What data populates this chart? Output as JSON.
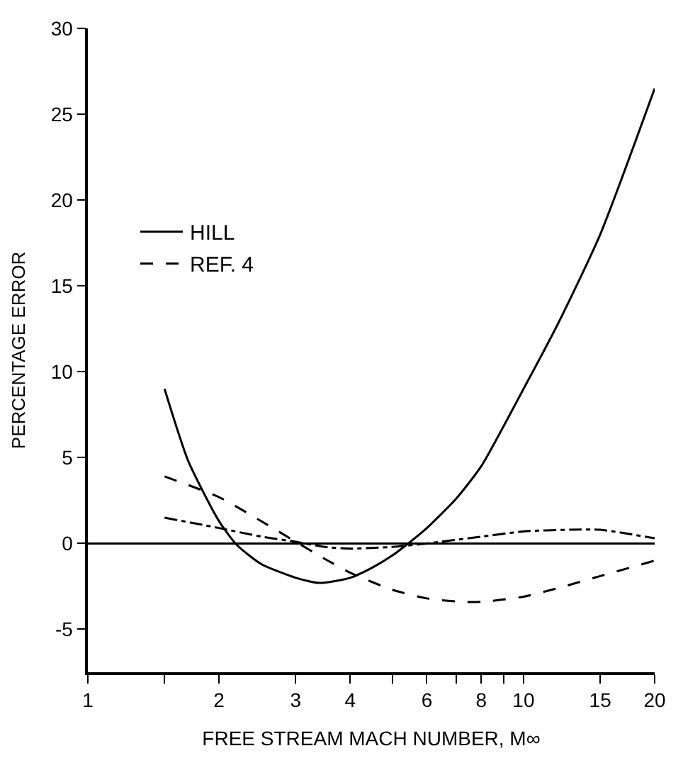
{
  "chart_data": {
    "type": "line",
    "xlabel": "FREE STREAM MACH NUMBER, M∞",
    "ylabel": "PERCENTAGE ERROR",
    "log": "x",
    "legend": "left",
    "marker": "none",
    "xlim": [
      1,
      20
    ],
    "ylim": [
      -7.5,
      30
    ],
    "xticks": [
      1,
      {
        "value": 1.5,
        "label": null
      },
      2,
      3,
      4,
      {
        "value": 5,
        "label": null
      },
      6,
      {
        "value": 7,
        "label": null
      },
      8,
      {
        "value": 9,
        "label": null
      },
      10,
      15,
      20
    ],
    "yticks": [
      -5,
      0,
      5,
      10,
      15,
      20,
      25,
      30
    ],
    "ref_lines": [
      {
        "axis": "y",
        "value": 0,
        "color": "#000000",
        "line_style": "solid"
      }
    ],
    "series": [
      {
        "name": "HILL",
        "color": "#000000",
        "line_style": "solid",
        "x": [
          1.5,
          1.7,
          2,
          2.2,
          2.5,
          3,
          3.4,
          4,
          4.5,
          5,
          5.5,
          6,
          7,
          8,
          10,
          12,
          15,
          20
        ],
        "values": [
          9,
          4.8,
          1.3,
          -0.1,
          -1.2,
          -2.0,
          -2.3,
          -2.0,
          -1.4,
          -0.7,
          0.1,
          0.9,
          2.6,
          4.5,
          9,
          12.8,
          18,
          26.5
        ]
      },
      {
        "color": "#000000",
        "line_style": "dashdot",
        "x": [
          1.5,
          2,
          2.5,
          3,
          3.5,
          4,
          5,
          6,
          8,
          10,
          12.8,
          15,
          20
        ],
        "values": [
          1.5,
          0.9,
          0.4,
          0.1,
          -0.2,
          -0.3,
          -0.2,
          0,
          0.4,
          0.7,
          0.8,
          0.8,
          0.3
        ]
      },
      {
        "name": "REF. 4",
        "color": "#000000",
        "line_style": "dashed",
        "x": [
          1.5,
          2,
          2.5,
          3,
          3.5,
          4,
          5,
          6,
          7.2,
          8,
          10,
          12,
          15,
          20
        ],
        "values": [
          3.9,
          2.7,
          1.3,
          0.1,
          -0.9,
          -1.7,
          -2.7,
          -3.2,
          -3.4,
          -3.4,
          -3.1,
          -2.6,
          -1.9,
          -1.0
        ]
      }
    ]
  }
}
